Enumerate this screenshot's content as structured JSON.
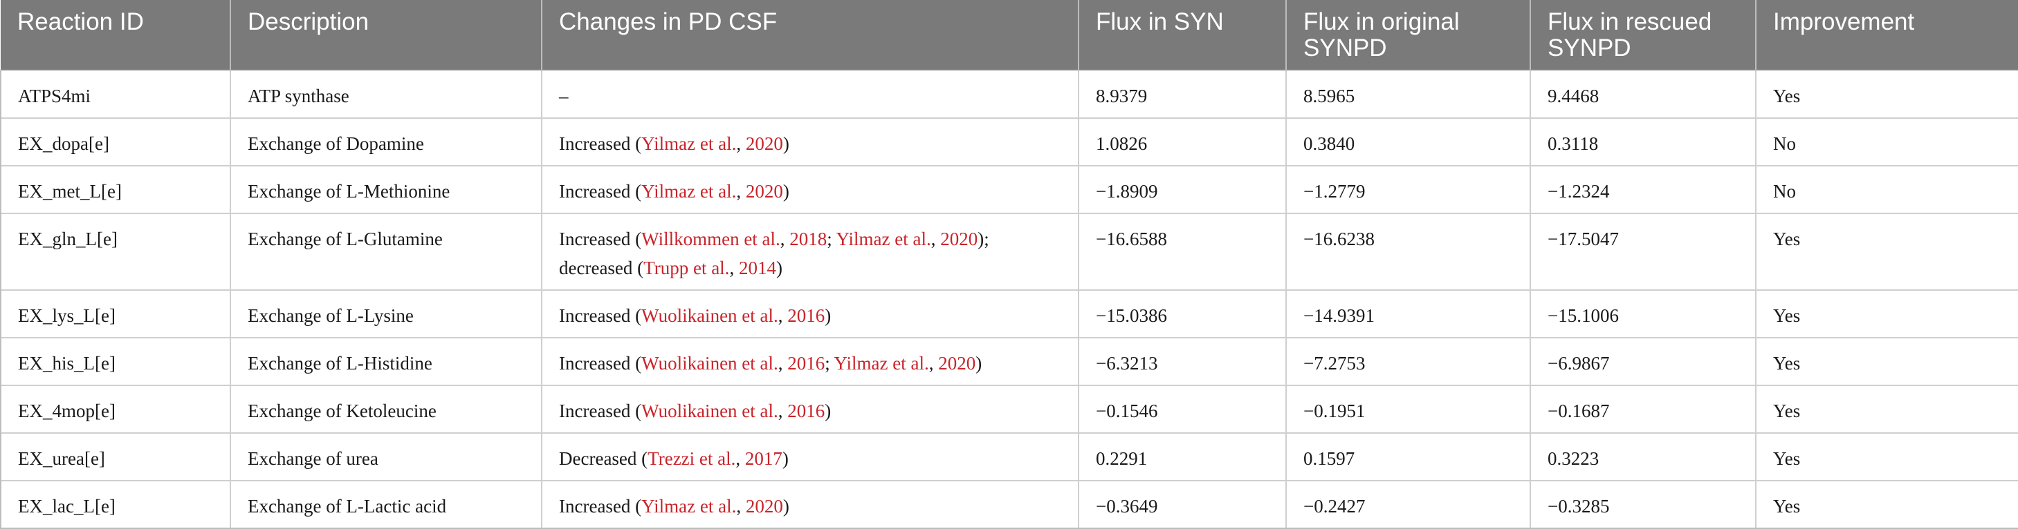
{
  "table": {
    "headers": [
      "Reaction ID",
      "Description",
      "Changes in PD CSF",
      "Flux in SYN",
      "Flux in original SYNPD",
      "Flux in rescued SYNPD",
      "Improvement"
    ],
    "rows": [
      {
        "id": "ATPS4mi",
        "description": "ATP synthase",
        "changes": [
          {
            "text": "–"
          }
        ],
        "flux_syn": "8.9379",
        "flux_original": "8.5965",
        "flux_rescued": "9.4468",
        "improvement": "Yes"
      },
      {
        "id": "EX_dopa[e]",
        "description": "Exchange of Dopamine",
        "changes": [
          {
            "text": "Increased ("
          },
          {
            "ref": "Yilmaz et al."
          },
          {
            "text": ", "
          },
          {
            "ref": "2020"
          },
          {
            "text": ")"
          }
        ],
        "flux_syn": "1.0826",
        "flux_original": "0.3840",
        "flux_rescued": "0.3118",
        "improvement": "No"
      },
      {
        "id": "EX_met_L[e]",
        "description": "Exchange of L-Methionine",
        "changes": [
          {
            "text": "Increased ("
          },
          {
            "ref": "Yilmaz et al."
          },
          {
            "text": ", "
          },
          {
            "ref": "2020"
          },
          {
            "text": ")"
          }
        ],
        "flux_syn": "−1.8909",
        "flux_original": "−1.2779",
        "flux_rescued": "−1.2324",
        "improvement": "No"
      },
      {
        "id": "EX_gln_L[e]",
        "description": "Exchange of L-Glutamine",
        "changes": [
          {
            "text": "Increased ("
          },
          {
            "ref": "Willkommen et al."
          },
          {
            "text": ", "
          },
          {
            "ref": "2018"
          },
          {
            "text": "; "
          },
          {
            "ref": "Yilmaz et al."
          },
          {
            "text": ", "
          },
          {
            "ref": "2020"
          },
          {
            "text": ");"
          },
          {
            "br": true
          },
          {
            "text": "decreased ("
          },
          {
            "ref": "Trupp et al."
          },
          {
            "text": ", "
          },
          {
            "ref": "2014"
          },
          {
            "text": ")"
          }
        ],
        "flux_syn": "−16.6588",
        "flux_original": "−16.6238",
        "flux_rescued": "−17.5047",
        "improvement": "Yes"
      },
      {
        "id": "EX_lys_L[e]",
        "description": "Exchange of L-Lysine",
        "changes": [
          {
            "text": "Increased ("
          },
          {
            "ref": "Wuolikainen et al."
          },
          {
            "text": ", "
          },
          {
            "ref": "2016"
          },
          {
            "text": ")"
          }
        ],
        "flux_syn": "−15.0386",
        "flux_original": "−14.9391",
        "flux_rescued": "−15.1006",
        "improvement": "Yes"
      },
      {
        "id": "EX_his_L[e]",
        "description": "Exchange of L-Histidine",
        "changes": [
          {
            "text": "Increased ("
          },
          {
            "ref": "Wuolikainen et al."
          },
          {
            "text": ", "
          },
          {
            "ref": "2016"
          },
          {
            "text": "; "
          },
          {
            "ref": "Yilmaz et al."
          },
          {
            "text": ", "
          },
          {
            "ref": "2020"
          },
          {
            "text": ")"
          }
        ],
        "flux_syn": "−6.3213",
        "flux_original": "−7.2753",
        "flux_rescued": "−6.9867",
        "improvement": "Yes"
      },
      {
        "id": "EX_4mop[e]",
        "description": "Exchange of Ketoleucine",
        "changes": [
          {
            "text": "Increased ("
          },
          {
            "ref": "Wuolikainen et al."
          },
          {
            "text": ", "
          },
          {
            "ref": "2016"
          },
          {
            "text": ")"
          }
        ],
        "flux_syn": "−0.1546",
        "flux_original": "−0.1951",
        "flux_rescued": "−0.1687",
        "improvement": "Yes"
      },
      {
        "id": "EX_urea[e]",
        "description": "Exchange of urea",
        "changes": [
          {
            "text": "Decreased ("
          },
          {
            "ref": "Trezzi et al."
          },
          {
            "text": ", "
          },
          {
            "ref": "2017"
          },
          {
            "text": ")"
          }
        ],
        "flux_syn": "0.2291",
        "flux_original": "0.1597",
        "flux_rescued": "0.3223",
        "improvement": "Yes"
      },
      {
        "id": "EX_lac_L[e]",
        "description": "Exchange of L-Lactic acid",
        "changes": [
          {
            "text": "Increased ("
          },
          {
            "ref": "Yilmaz et al."
          },
          {
            "text": ", "
          },
          {
            "ref": "2020"
          },
          {
            "text": ")"
          }
        ],
        "flux_syn": "−0.3649",
        "flux_original": "−0.2427",
        "flux_rescued": "−0.3285",
        "improvement": "Yes"
      }
    ]
  },
  "colors": {
    "header_bg": "#7a7a7a",
    "header_text": "#ffffff",
    "reference_link": "#c8242a",
    "grid_line": "#cfcfcf"
  }
}
